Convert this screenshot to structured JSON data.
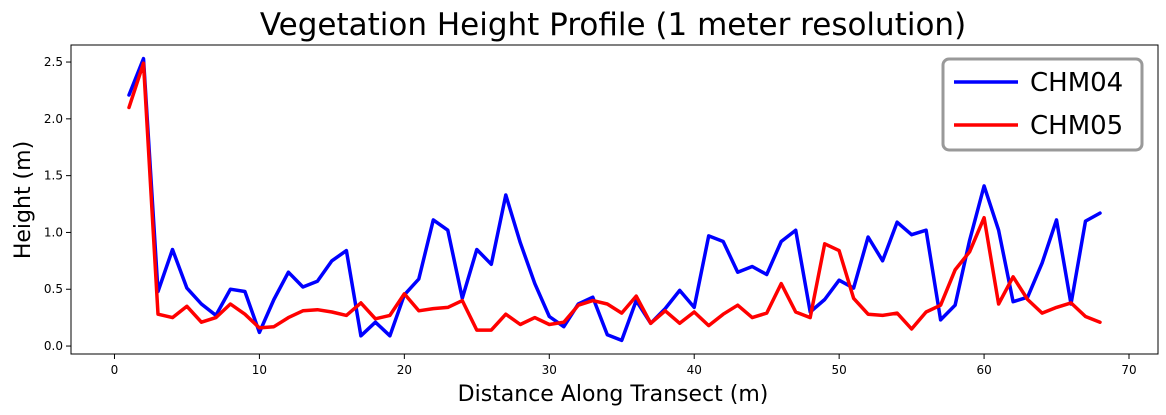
{
  "chart_data": {
    "type": "line",
    "title": "Vegetation Height Profile (1 meter resolution)",
    "xlabel": "Distance Along Transect (m)",
    "ylabel": "Height (m)",
    "xlim": [
      -3,
      72
    ],
    "ylim": [
      -0.07,
      2.65
    ],
    "xticks": [
      0,
      10,
      20,
      30,
      40,
      50,
      60,
      70
    ],
    "yticks": [
      0.0,
      0.5,
      1.0,
      1.5,
      2.0,
      2.5
    ],
    "xtick_labels": [
      "0",
      "10",
      "20",
      "30",
      "40",
      "50",
      "60",
      "70"
    ],
    "ytick_labels": [
      "0.0",
      "0.5",
      "1.0",
      "1.5",
      "2.0",
      "2.5"
    ],
    "grid": false,
    "legend_position": "top-right",
    "x": [
      1,
      2,
      3,
      4,
      5,
      6,
      7,
      8,
      9,
      10,
      11,
      12,
      13,
      14,
      15,
      16,
      17,
      18,
      19,
      20,
      21,
      22,
      23,
      24,
      25,
      26,
      27,
      28,
      29,
      30,
      31,
      32,
      33,
      34,
      35,
      36,
      37,
      38,
      39,
      40,
      41,
      42,
      43,
      44,
      45,
      46,
      47,
      48,
      49,
      50,
      51,
      52,
      53,
      54,
      55,
      56,
      57,
      58,
      59,
      60,
      61,
      62,
      63,
      64,
      65,
      66,
      67,
      68
    ],
    "series": [
      {
        "name": "CHM04",
        "color": "#0000ff",
        "values": [
          2.21,
          2.53,
          0.48,
          0.85,
          0.51,
          0.37,
          0.27,
          0.5,
          0.48,
          0.12,
          0.41,
          0.65,
          0.52,
          0.57,
          0.75,
          0.84,
          0.09,
          0.21,
          0.09,
          0.45,
          0.59,
          1.11,
          1.02,
          0.42,
          0.85,
          0.72,
          1.33,
          0.91,
          0.55,
          0.26,
          0.17,
          0.37,
          0.43,
          0.1,
          0.05,
          0.4,
          0.2,
          0.33,
          0.49,
          0.34,
          0.97,
          0.92,
          0.65,
          0.7,
          0.63,
          0.92,
          1.02,
          0.3,
          0.41,
          0.58,
          0.51,
          0.96,
          0.75,
          1.09,
          0.98,
          1.02,
          0.23,
          0.36,
          0.93,
          1.41,
          1.02,
          0.39,
          0.43,
          0.73,
          1.11,
          0.37,
          1.1,
          1.17
        ]
      },
      {
        "name": "CHM05",
        "color": "#ff0000",
        "values": [
          2.1,
          2.49,
          0.28,
          0.25,
          0.35,
          0.21,
          0.25,
          0.37,
          0.28,
          0.16,
          0.17,
          0.25,
          0.31,
          0.32,
          0.3,
          0.27,
          0.38,
          0.24,
          0.27,
          0.46,
          0.31,
          0.33,
          0.34,
          0.4,
          0.14,
          0.14,
          0.28,
          0.19,
          0.25,
          0.19,
          0.21,
          0.36,
          0.4,
          0.37,
          0.29,
          0.44,
          0.2,
          0.31,
          0.2,
          0.3,
          0.18,
          0.28,
          0.36,
          0.25,
          0.29,
          0.55,
          0.3,
          0.25,
          0.9,
          0.84,
          0.42,
          0.28,
          0.27,
          0.29,
          0.15,
          0.3,
          0.36,
          0.67,
          0.83,
          1.13,
          0.37,
          0.61,
          0.41,
          0.29,
          0.34,
          0.38,
          0.26,
          0.21
        ]
      }
    ]
  }
}
